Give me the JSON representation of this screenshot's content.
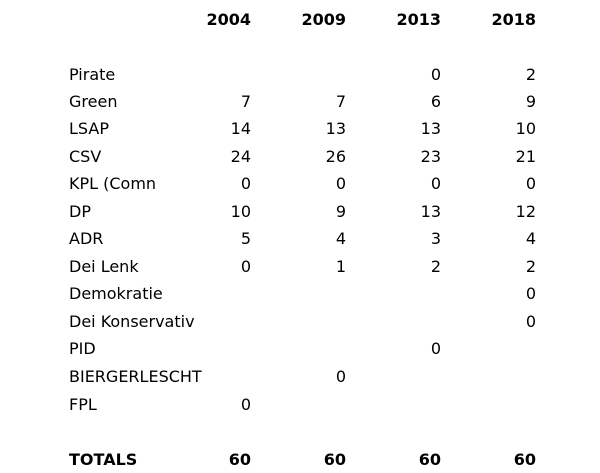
{
  "header": {
    "years": [
      "2004",
      "2009",
      "2013",
      "2018"
    ]
  },
  "rows": [
    {
      "party": "Pirate",
      "values": [
        "",
        "",
        "0",
        "2"
      ]
    },
    {
      "party": "Green",
      "values": [
        "7",
        "7",
        "6",
        "9"
      ]
    },
    {
      "party": "LSAP",
      "values": [
        "14",
        "13",
        "13",
        "10"
      ]
    },
    {
      "party": "CSV",
      "values": [
        "24",
        "26",
        "23",
        "21"
      ]
    },
    {
      "party": "KPL (Comn",
      "values": [
        "0",
        "0",
        "0",
        "0"
      ]
    },
    {
      "party": "DP",
      "values": [
        "10",
        "9",
        "13",
        "12"
      ]
    },
    {
      "party": "ADR",
      "values": [
        "5",
        "4",
        "3",
        "4"
      ]
    },
    {
      "party": "Dei Lenk",
      "values": [
        "0",
        "1",
        "2",
        "2"
      ]
    },
    {
      "party": "Demokratie",
      "values": [
        "",
        "",
        "",
        "0"
      ]
    },
    {
      "party": "Dei Konservativ",
      "values": [
        "",
        "",
        "",
        "0"
      ]
    },
    {
      "party": "PID",
      "values": [
        "",
        "",
        "0",
        ""
      ]
    },
    {
      "party": "BIERGERLESCHT",
      "values": [
        "",
        "0",
        "",
        ""
      ]
    },
    {
      "party": "FPL",
      "values": [
        "0",
        "",
        "",
        ""
      ]
    }
  ],
  "totals": {
    "label": "TOTALS",
    "values": [
      "60",
      "60",
      "60",
      "60"
    ]
  }
}
